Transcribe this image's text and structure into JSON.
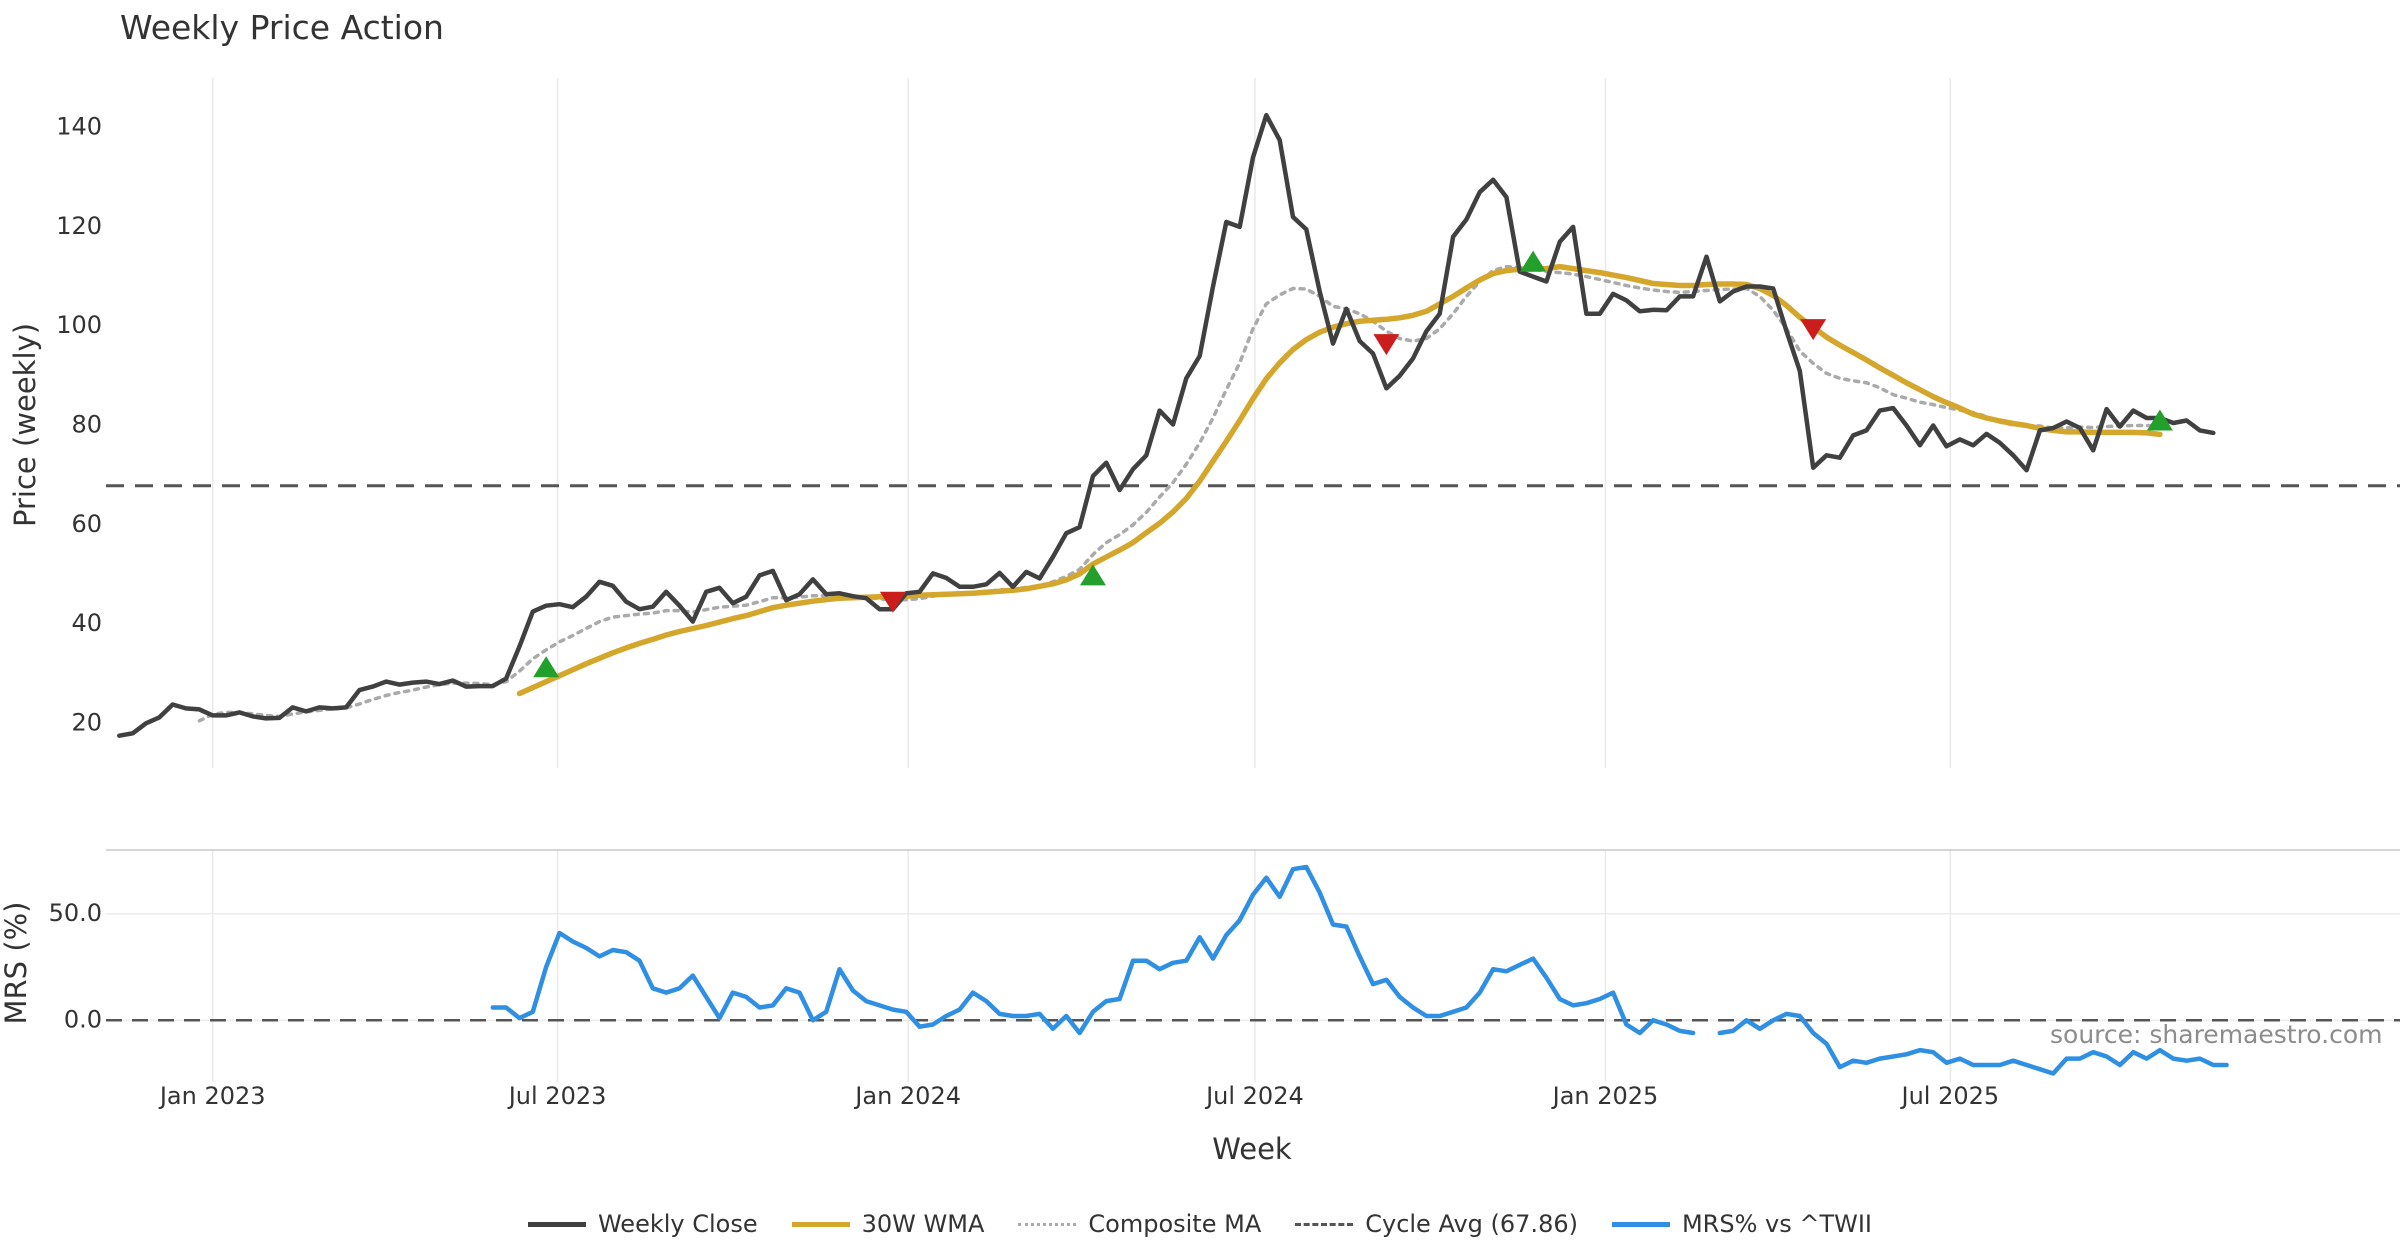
{
  "title": "Weekly Price Action",
  "source_label": "source: sharemaestro.com",
  "colors": {
    "weekly_close": "#404040",
    "wma": "#d4a72c",
    "composite": "#aaaaaa",
    "cycle": "#555555",
    "mrs": "#2e8fe3",
    "buy": "#22a02b",
    "sell": "#cc1d1d",
    "grid": "#e9e9e9"
  },
  "legend": [
    {
      "label": "Weekly Close",
      "style": "solid",
      "color": "#404040"
    },
    {
      "label": "30W WMA",
      "style": "solid",
      "color": "#d4a72c"
    },
    {
      "label": "Composite MA",
      "style": "dotted",
      "color": "#aaaaaa"
    },
    {
      "label": "Cycle Avg (67.86)",
      "style": "dashed",
      "color": "#555555"
    },
    {
      "label": "MRS% vs ^TWII",
      "style": "solid",
      "color": "#2e8fe3"
    }
  ],
  "chart_data": {
    "type": "line",
    "xlabel": "Week",
    "x_tick_labels": [
      "Jan 2023",
      "Jul 2023",
      "Jan 2024",
      "Jul 2024",
      "Jan 2025",
      "Jul 2025"
    ],
    "x_tick_dates": [
      "2023-01-01",
      "2023-07-01",
      "2024-01-01",
      "2024-07-01",
      "2025-01-01",
      "2025-07-01"
    ],
    "x_range": [
      "2022-11-06",
      "2026-02-22"
    ],
    "weeks": [
      "2022-11-13",
      "2022-11-20",
      "2022-11-27",
      "2022-12-04",
      "2022-12-11",
      "2022-12-18",
      "2022-12-25",
      "2023-01-01",
      "2023-01-08",
      "2023-01-15",
      "2023-01-22",
      "2023-01-29",
      "2023-02-05",
      "2023-02-12",
      "2023-02-19",
      "2023-02-26",
      "2023-03-05",
      "2023-03-12",
      "2023-03-19",
      "2023-03-26",
      "2023-04-02",
      "2023-04-09",
      "2023-04-16",
      "2023-04-23",
      "2023-04-30",
      "2023-05-07",
      "2023-05-14",
      "2023-05-21",
      "2023-05-28",
      "2023-06-04",
      "2023-06-11",
      "2023-06-18",
      "2023-06-25",
      "2023-07-02",
      "2023-07-09",
      "2023-07-16",
      "2023-07-23",
      "2023-07-30",
      "2023-08-06",
      "2023-08-13",
      "2023-08-20",
      "2023-08-27",
      "2023-09-03",
      "2023-09-10",
      "2023-09-17",
      "2023-09-24",
      "2023-10-01",
      "2023-10-08",
      "2023-10-15",
      "2023-10-22",
      "2023-10-29",
      "2023-11-05",
      "2023-11-12",
      "2023-11-19",
      "2023-11-26",
      "2023-12-03",
      "2023-12-10",
      "2023-12-17",
      "2023-12-24",
      "2023-12-31",
      "2024-01-07",
      "2024-01-14",
      "2024-01-21",
      "2024-01-28",
      "2024-02-04",
      "2024-02-11",
      "2024-02-18",
      "2024-02-25",
      "2024-03-03",
      "2024-03-10",
      "2024-03-17",
      "2024-03-24",
      "2024-03-31",
      "2024-04-07",
      "2024-04-14",
      "2024-04-21",
      "2024-04-28",
      "2024-05-05",
      "2024-05-12",
      "2024-05-19",
      "2024-05-26",
      "2024-06-02",
      "2024-06-09",
      "2024-06-16",
      "2024-06-23",
      "2024-06-30",
      "2024-07-07",
      "2024-07-14",
      "2024-07-21",
      "2024-07-28",
      "2024-08-04",
      "2024-08-11",
      "2024-08-18",
      "2024-08-25",
      "2024-09-01",
      "2024-09-08",
      "2024-09-15",
      "2024-09-22",
      "2024-09-29",
      "2024-10-06",
      "2024-10-13",
      "2024-10-20",
      "2024-10-27",
      "2024-11-03",
      "2024-11-10",
      "2024-11-17",
      "2024-11-24",
      "2024-12-01",
      "2024-12-08",
      "2024-12-15",
      "2024-12-22",
      "2024-12-29",
      "2025-01-05",
      "2025-01-12",
      "2025-01-19",
      "2025-01-26",
      "2025-02-02",
      "2025-02-09",
      "2025-02-16",
      "2025-02-23",
      "2025-03-02",
      "2025-03-09",
      "2025-03-16",
      "2025-03-23",
      "2025-03-30",
      "2025-04-06",
      "2025-04-13",
      "2025-04-20",
      "2025-04-27",
      "2025-05-04",
      "2025-05-11",
      "2025-05-18",
      "2025-05-25",
      "2025-06-01",
      "2025-06-08",
      "2025-06-15",
      "2025-06-22",
      "2025-06-29",
      "2025-07-06",
      "2025-07-13",
      "2025-07-20",
      "2025-07-27",
      "2025-08-03",
      "2025-08-10",
      "2025-08-17",
      "2025-08-24",
      "2025-08-31",
      "2025-09-07",
      "2025-09-14",
      "2025-09-21",
      "2025-09-28",
      "2025-10-05",
      "2025-10-12",
      "2025-10-19",
      "2025-10-26",
      "2025-11-02",
      "2025-11-09",
      "2025-11-16",
      "2025-11-23"
    ],
    "price_panel": {
      "ylabel": "Price (weekly)",
      "ylim": [
        11,
        150
      ],
      "yticks": [
        20,
        40,
        60,
        80,
        100,
        120,
        140
      ],
      "series": [
        {
          "name": "Weekly Close",
          "values": [
            17.5,
            18,
            20,
            21.2,
            23.8,
            23,
            22.8,
            21.6,
            21.6,
            22.2,
            21.4,
            21,
            21.1,
            23.2,
            22.4,
            23.2,
            23,
            23.2,
            26.7,
            27.4,
            28.4,
            27.8,
            28.2,
            28.4,
            27.9,
            28.6,
            27.4,
            27.5,
            27.5,
            29,
            35.5,
            42.5,
            43.7,
            44,
            43.4,
            45.5,
            48.5,
            47.7,
            44.5,
            43,
            43.5,
            46.5,
            43.7,
            40.5,
            46.5,
            47.3,
            44.2,
            45.5,
            49.8,
            50.7,
            44.8,
            46,
            49,
            46,
            46.2,
            45.6,
            45.2,
            43,
            43,
            46.2,
            46.5,
            50.2,
            49.3,
            47.5,
            47.5,
            48,
            50.3,
            47.5,
            50.5,
            49.2,
            53.5,
            58.3,
            59.5,
            69.8,
            72.5,
            67,
            71.2,
            74,
            83,
            80.2,
            89.5,
            94,
            108,
            121,
            120,
            134,
            142.5,
            137.5,
            122,
            119.5,
            107,
            96.5,
            103.5,
            97,
            94.5,
            87.5,
            90,
            93.5,
            99,
            102.5,
            118,
            121.5,
            127,
            129.5,
            126,
            111,
            110,
            109,
            117,
            120,
            102.5,
            102.5,
            106.5,
            105.2,
            103,
            103.3,
            103.2,
            106,
            106,
            114,
            105,
            107,
            108,
            108,
            107.6,
            99,
            91,
            71.5,
            74,
            73.5,
            78,
            79,
            83,
            83.5,
            80,
            76,
            80,
            75.8,
            77.2,
            76,
            78.3,
            76.5,
            74,
            71,
            79,
            79.5,
            80.8,
            79.5,
            75,
            83.3,
            79.8,
            83,
            81.5,
            81.5,
            80.5,
            81,
            79,
            78.5
          ]
        },
        {
          "name": "30W WMA",
          "values": [
            null,
            null,
            null,
            null,
            null,
            null,
            null,
            null,
            null,
            null,
            null,
            null,
            null,
            null,
            null,
            null,
            null,
            null,
            null,
            null,
            null,
            null,
            null,
            null,
            null,
            null,
            null,
            null,
            null,
            null,
            26,
            27.2,
            28.4,
            29.6,
            30.8,
            32,
            33.1,
            34.2,
            35.2,
            36.1,
            36.9,
            37.8,
            38.5,
            39.1,
            39.7,
            40.4,
            41.1,
            41.7,
            42.5,
            43.3,
            43.8,
            44.2,
            44.6,
            44.9,
            45.2,
            45.3,
            45.4,
            45.5,
            45.5,
            45.6,
            45.8,
            45.9,
            46,
            46.1,
            46.2,
            46.4,
            46.6,
            46.8,
            47.1,
            47.6,
            48.1,
            48.9,
            50.1,
            52.1,
            53.5,
            54.9,
            56.4,
            58.4,
            60.3,
            62.6,
            65.3,
            68.8,
            72.8,
            76.8,
            81,
            85.4,
            89.4,
            92.6,
            95.3,
            97.3,
            98.8,
            99.8,
            100.5,
            101,
            101.2,
            101.4,
            101.7,
            102.2,
            103,
            104.5,
            106,
            107.7,
            109.3,
            110.6,
            111.2,
            111.5,
            111.5,
            111.6,
            112,
            111.6,
            111.2,
            110.8,
            110.3,
            109.8,
            109.2,
            108.6,
            108.4,
            108.2,
            108.2,
            108.4,
            108.5,
            108.5,
            108.4,
            107.6,
            106.2,
            104.2,
            101.8,
            99.8,
            97.8,
            96.2,
            94.7,
            93.2,
            91.6,
            90.1,
            88.6,
            87.2,
            85.8,
            84.6,
            83.5,
            82.3,
            81.5,
            80.9,
            80.4,
            80,
            79.4,
            79,
            78.7,
            78.7,
            78.6,
            78.6,
            78.6,
            78.6,
            78.5,
            78.2
          ]
        },
        {
          "name": "Composite MA",
          "values": [
            null,
            null,
            null,
            null,
            null,
            null,
            20.5,
            21.8,
            22.2,
            22.2,
            21.9,
            21.6,
            21.4,
            21.9,
            22.3,
            22.6,
            22.9,
            23.1,
            23.9,
            24.8,
            25.6,
            26.2,
            26.7,
            27.3,
            27.8,
            28.1,
            28.1,
            28,
            27.8,
            28.4,
            30.5,
            33,
            34.8,
            36.4,
            37.7,
            39.1,
            40.5,
            41.4,
            41.7,
            42,
            42.2,
            42.7,
            42.7,
            42.4,
            42.9,
            43.4,
            43.6,
            43.8,
            44.5,
            45.3,
            45.3,
            45.4,
            45.7,
            45.7,
            45.7,
            45.6,
            45.4,
            45.1,
            44.8,
            44.9,
            45.1,
            45.6,
            46,
            46.2,
            46.3,
            46.5,
            46.9,
            47,
            47.4,
            47.7,
            48.5,
            49.6,
            51,
            54,
            56.4,
            58,
            60,
            62.5,
            65.6,
            68.5,
            72.2,
            76.5,
            81.5,
            87.2,
            92.6,
            99.5,
            104.5,
            106.3,
            107.6,
            107.5,
            106,
            104,
            103.5,
            102.5,
            101,
            99,
            97.5,
            97,
            97.5,
            99.5,
            102.5,
            106,
            109,
            111.2,
            112,
            111.8,
            111.5,
            111,
            110.8,
            110.5,
            110,
            109.4,
            108.8,
            108.2,
            107.7,
            107.3,
            107,
            106.8,
            107,
            107.2,
            107.4,
            107.5,
            107.6,
            106,
            103.2,
            99.5,
            95,
            92.5,
            90.5,
            89.5,
            89,
            88.6,
            87.6,
            86.2,
            85.5,
            84.7,
            84.2,
            83.6,
            83.1,
            82.6,
            81.8,
            80.7,
            80.1,
            80,
            79.9,
            79.5,
            79.5,
            79.7,
            79.6,
            79.8,
            79.9,
            80,
            80,
            79.9
          ]
        },
        {
          "name": "Cycle Avg (67.86)",
          "constant": 67.86
        }
      ],
      "buy_signals": [
        {
          "x": "2023-06-25",
          "y": 31.3
        },
        {
          "x": "2024-04-07",
          "y": 49.8
        },
        {
          "x": "2024-11-24",
          "y": 113
        },
        {
          "x": "2025-10-19",
          "y": 81
        }
      ],
      "sell_signals": [
        {
          "x": "2023-12-24",
          "y": 44.5
        },
        {
          "x": "2024-09-08",
          "y": 96.4
        },
        {
          "x": "2025-04-20",
          "y": 99.4
        }
      ]
    },
    "mrs_panel": {
      "ylabel": "MRS (%)",
      "ylim": [
        -29,
        80
      ],
      "yticks": [
        0,
        50
      ],
      "ytick_labels": [
        "0.0",
        "50.0"
      ],
      "zero_line": 0,
      "series": [
        {
          "name": "MRS% vs ^TWII",
          "values": [
            null,
            null,
            null,
            null,
            null,
            null,
            null,
            null,
            null,
            null,
            null,
            null,
            null,
            null,
            null,
            null,
            null,
            null,
            null,
            null,
            null,
            null,
            null,
            null,
            null,
            null,
            null,
            null,
            6,
            6,
            1,
            4,
            25,
            41,
            37,
            34,
            30,
            33,
            32,
            28,
            15,
            13,
            15,
            21,
            11,
            1,
            13,
            11,
            6,
            7,
            15,
            13,
            0,
            4,
            24,
            14,
            9,
            7,
            5,
            4,
            -3,
            -2,
            2,
            5,
            13,
            9,
            3,
            2,
            2,
            3,
            -4,
            2,
            -6,
            4,
            9,
            10,
            28,
            28,
            24,
            27,
            28,
            39,
            29,
            40,
            47,
            59,
            67,
            58,
            71,
            72,
            60,
            45,
            44,
            30,
            17,
            19,
            11,
            6,
            2,
            2,
            4,
            6,
            13,
            24,
            23,
            26,
            29,
            20,
            10,
            7,
            8,
            10,
            13,
            -2,
            -6,
            0,
            -2,
            -5,
            -6,
            null,
            -6,
            -5,
            0,
            -4,
            0,
            3,
            2,
            -6,
            -11,
            -22,
            -19,
            -20,
            -18,
            -17,
            -16,
            -14,
            -15,
            -20,
            -18,
            -21,
            -21,
            -21,
            -19,
            -21,
            -23,
            -25,
            -18,
            -18,
            -15,
            -17,
            -21,
            -15,
            -18,
            -14,
            -18,
            -19,
            -18,
            -21,
            -21
          ]
        }
      ]
    }
  }
}
